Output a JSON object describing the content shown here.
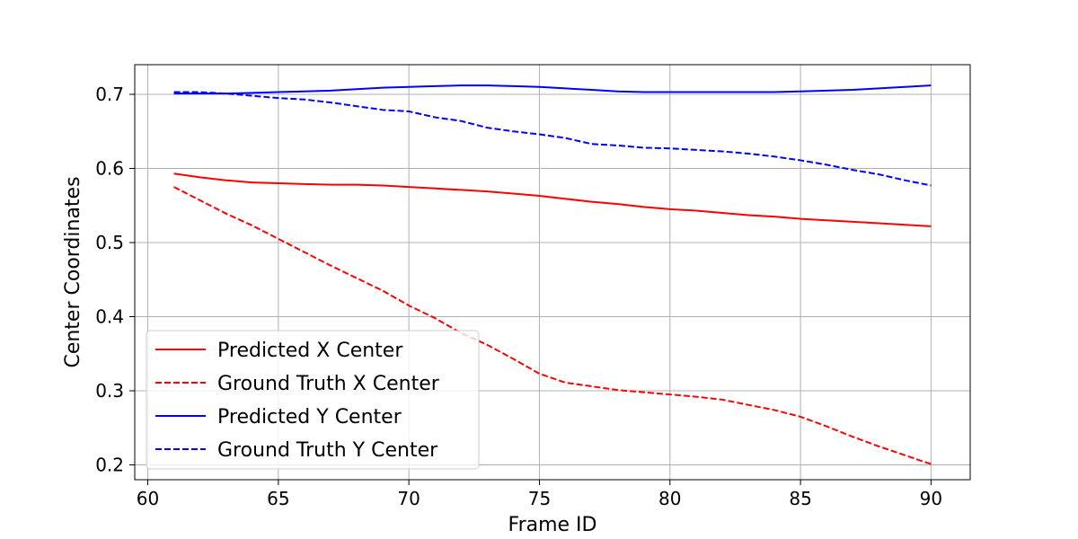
{
  "chart_data": {
    "type": "line",
    "title": "",
    "xlabel": "Frame ID",
    "ylabel": "Center Coordinates",
    "xlim": [
      59.5,
      91.5
    ],
    "ylim": [
      0.18,
      0.74
    ],
    "x_ticks": [
      60,
      65,
      70,
      75,
      80,
      85,
      90
    ],
    "y_ticks": [
      0.2,
      0.3,
      0.4,
      0.5,
      0.6,
      0.7
    ],
    "x_tick_labels": [
      "60",
      "65",
      "70",
      "75",
      "80",
      "85",
      "90"
    ],
    "y_tick_labels": [
      "0.2",
      "0.3",
      "0.4",
      "0.5",
      "0.6",
      "0.7"
    ],
    "grid": true,
    "legend_position": "lower-left",
    "x": [
      61,
      62,
      63,
      64,
      65,
      66,
      67,
      68,
      69,
      70,
      71,
      72,
      73,
      74,
      75,
      76,
      77,
      78,
      79,
      80,
      81,
      82,
      83,
      84,
      85,
      86,
      87,
      88,
      89,
      90
    ],
    "series": [
      {
        "name": "Predicted X Center",
        "color": "#ff0000",
        "dash": "solid",
        "values": [
          0.593,
          0.588,
          0.584,
          0.581,
          0.58,
          0.579,
          0.578,
          0.578,
          0.577,
          0.575,
          0.573,
          0.571,
          0.569,
          0.566,
          0.563,
          0.559,
          0.555,
          0.552,
          0.548,
          0.545,
          0.543,
          0.54,
          0.537,
          0.535,
          0.532,
          0.53,
          0.528,
          0.526,
          0.524,
          0.522
        ]
      },
      {
        "name": "Ground Truth X Center",
        "color": "#ff0000",
        "dash": "dashed",
        "values": [
          0.575,
          0.557,
          0.539,
          0.523,
          0.505,
          0.487,
          0.469,
          0.452,
          0.435,
          0.415,
          0.398,
          0.378,
          0.362,
          0.343,
          0.323,
          0.311,
          0.306,
          0.301,
          0.298,
          0.295,
          0.292,
          0.288,
          0.281,
          0.274,
          0.265,
          0.252,
          0.238,
          0.225,
          0.213,
          0.201
        ]
      },
      {
        "name": "Predicted Y Center",
        "color": "#0000ff",
        "dash": "solid",
        "values": [
          0.701,
          0.701,
          0.701,
          0.702,
          0.703,
          0.704,
          0.705,
          0.707,
          0.709,
          0.71,
          0.711,
          0.712,
          0.712,
          0.711,
          0.71,
          0.708,
          0.706,
          0.704,
          0.703,
          0.703,
          0.703,
          0.703,
          0.703,
          0.703,
          0.704,
          0.705,
          0.706,
          0.708,
          0.71,
          0.712
        ]
      },
      {
        "name": "Ground Truth Y Center",
        "color": "#0000ff",
        "dash": "dashed",
        "values": [
          0.703,
          0.703,
          0.701,
          0.698,
          0.695,
          0.693,
          0.689,
          0.684,
          0.679,
          0.677,
          0.669,
          0.664,
          0.655,
          0.65,
          0.646,
          0.641,
          0.633,
          0.631,
          0.628,
          0.627,
          0.625,
          0.623,
          0.62,
          0.616,
          0.611,
          0.605,
          0.598,
          0.592,
          0.584,
          0.577
        ]
      }
    ]
  }
}
